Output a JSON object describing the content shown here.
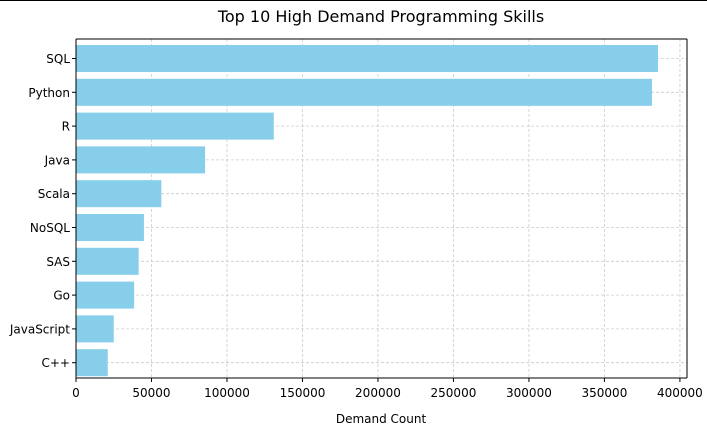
{
  "chart_data": {
    "type": "bar",
    "orientation": "horizontal",
    "title": "Top 10 High Demand Programming Skills",
    "xlabel": "Demand Count",
    "ylabel": "",
    "categories": [
      "SQL",
      "Python",
      "R",
      "Java",
      "Scala",
      "NoSQL",
      "SAS",
      "Go",
      "JavaScript",
      "C++"
    ],
    "values": [
      385500,
      381500,
      131000,
      85500,
      56500,
      45000,
      41500,
      38500,
      25000,
      21000
    ],
    "xlim": [
      0,
      404000
    ],
    "xticks": [
      0,
      50000,
      100000,
      150000,
      200000,
      250000,
      300000,
      350000,
      400000
    ],
    "xtick_labels": [
      "0",
      "50000",
      "100000",
      "150000",
      "200000",
      "250000",
      "300000",
      "350000",
      "400000"
    ],
    "bar_color": "#87ceeb",
    "grid": true,
    "grid_style": "dashed"
  }
}
